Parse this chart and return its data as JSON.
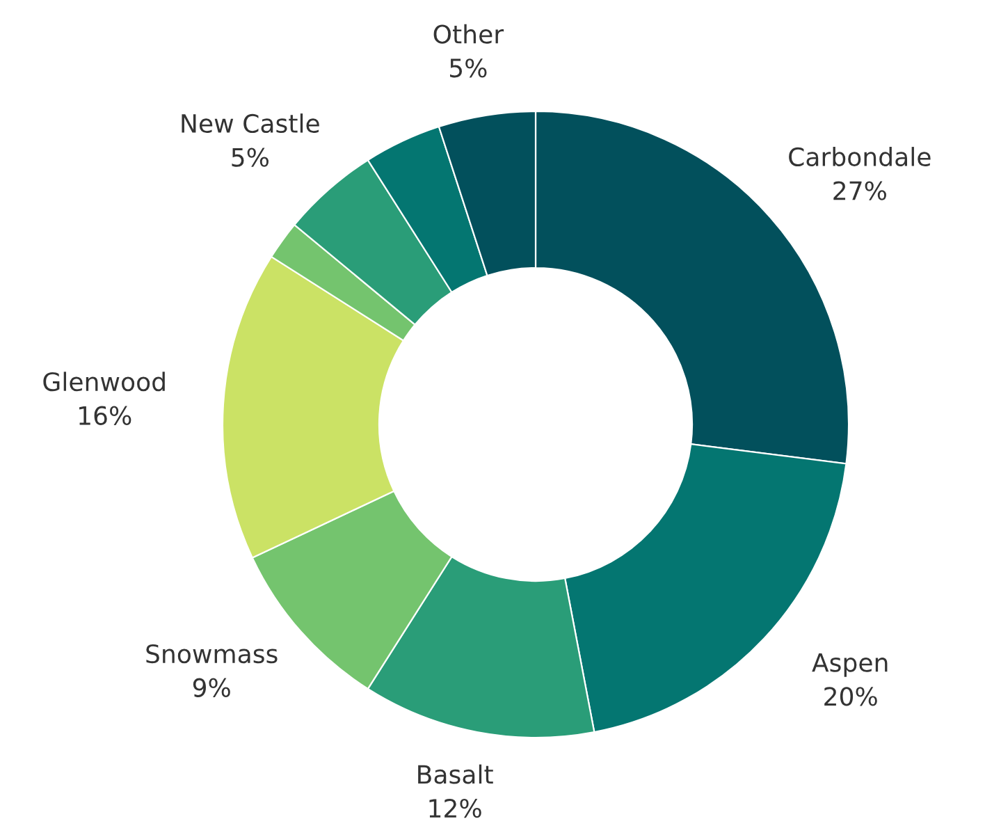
{
  "chart_data": {
    "type": "donut",
    "categories": [
      "Carbondale",
      "Aspen",
      "Basalt",
      "Snowmass",
      "Glenwood",
      null,
      "New Castle",
      null,
      "Other"
    ],
    "values": [
      27,
      20,
      12,
      9,
      16,
      2,
      5,
      4,
      5
    ],
    "value_labels": [
      "27%",
      "20%",
      "12%",
      "9%",
      "16%",
      null,
      "5%",
      null,
      "5%"
    ],
    "colors": [
      "#02505c",
      "#047671",
      "#2a9d78",
      "#74c46e",
      "#cbe265",
      "#74c46e",
      "#2a9d78",
      "#047671",
      "#02505c"
    ],
    "legend": false
  }
}
